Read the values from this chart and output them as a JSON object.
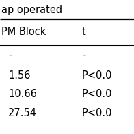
{
  "header_row0": "ap operated",
  "header_row1_left": "PM Block",
  "header_row1_right": "t",
  "rows": [
    [
      "-",
      "-"
    ],
    [
      "1.56",
      "P<0.0"
    ],
    [
      "10.66",
      "P<0.0"
    ],
    [
      "27.54",
      "P<0.0"
    ]
  ],
  "bg_color": "#ffffff",
  "text_color": "#000000",
  "font_size": 10.5
}
